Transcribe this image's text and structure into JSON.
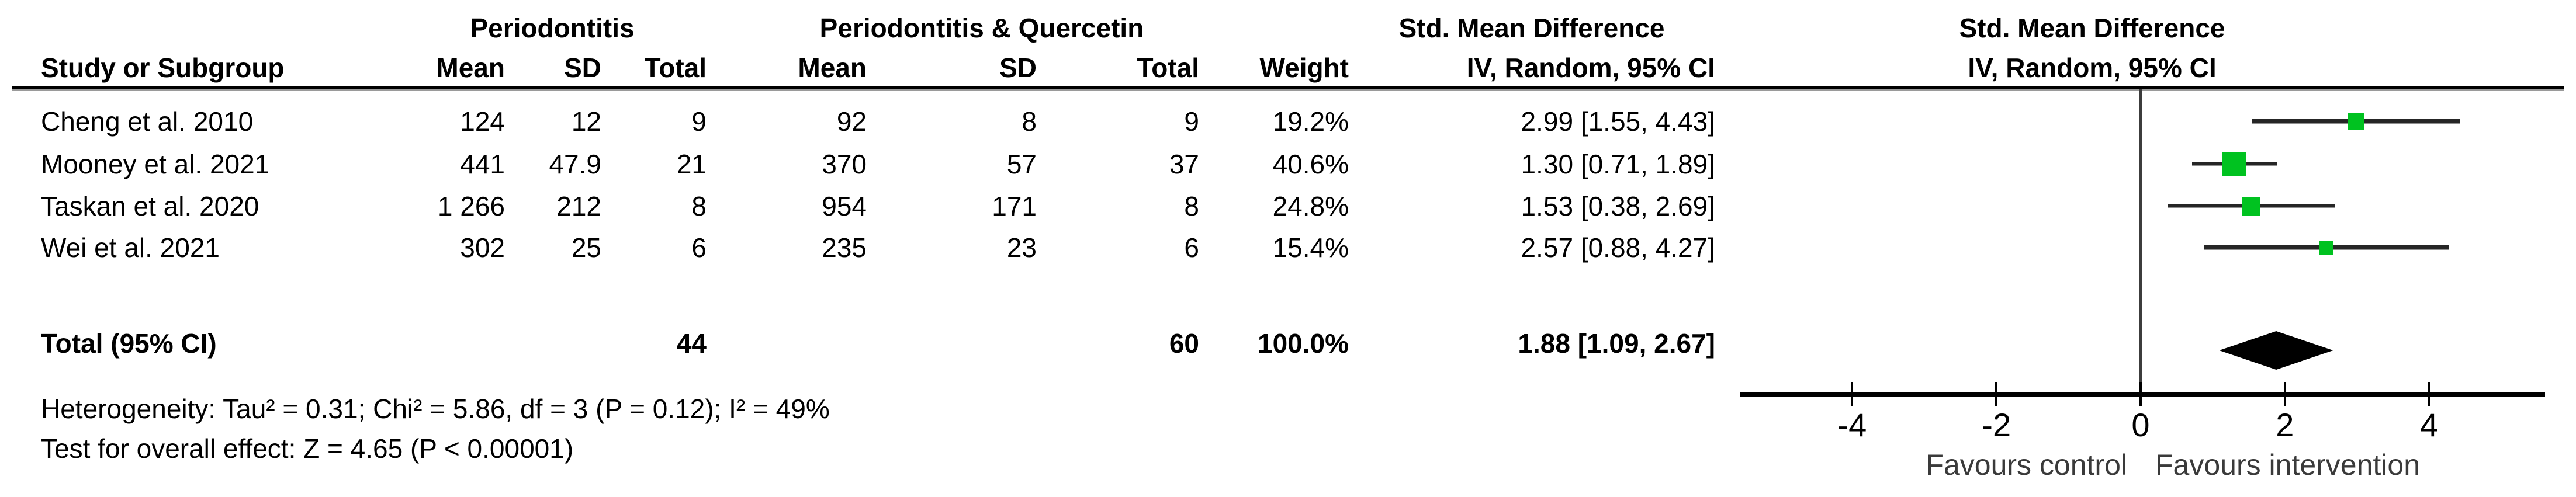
{
  "table": {
    "group1_header": "Periodontitis",
    "group2_header": "Periodontitis & Quercetin",
    "effect_col_header_line1": "Std. Mean Difference",
    "effect_col_header_line2": "IV, Random, 95% CI",
    "plot_header_line1": "Std. Mean Difference",
    "plot_header_line2": "IV, Random, 95% CI",
    "columns": {
      "study": "Study or Subgroup",
      "mean1": "Mean",
      "sd1": "SD",
      "total1": "Total",
      "mean2": "Mean",
      "sd2": "SD",
      "total2": "Total",
      "weight": "Weight",
      "ci": "IV, Random, 95% CI"
    },
    "rows": [
      {
        "study": "Cheng et al. 2010",
        "mean1": "124",
        "sd1": "12",
        "total1": "9",
        "mean2": "92",
        "sd2": "8",
        "total2": "9",
        "weight": "19.2%",
        "ci": "2.99 [1.55, 4.43]"
      },
      {
        "study": "Mooney et al. 2021",
        "mean1": "441",
        "sd1": "47.9",
        "total1": "21",
        "mean2": "370",
        "sd2": "57",
        "total2": "37",
        "weight": "40.6%",
        "ci": "1.30 [0.71, 1.89]"
      },
      {
        "study": "Taskan et al. 2020",
        "mean1": "1 266",
        "sd1": "212",
        "total1": "8",
        "mean2": "954",
        "sd2": "171",
        "total2": "8",
        "weight": "24.8%",
        "ci": "1.53 [0.38, 2.69]"
      },
      {
        "study": "Wei et al. 2021",
        "mean1": "302",
        "sd1": "25",
        "total1": "6",
        "mean2": "235",
        "sd2": "23",
        "total2": "6",
        "weight": "15.4%",
        "ci": "2.57 [0.88, 4.27]"
      }
    ],
    "total_row": {
      "label": "Total (95% CI)",
      "total1": "44",
      "total2": "60",
      "weight": "100.0%",
      "ci": "1.88 [1.09, 2.67]"
    }
  },
  "footer": {
    "heterogeneity": "Heterogeneity: Tau² = 0.31; Chi² = 5.86, df = 3 (P = 0.12); I² = 49%",
    "overall_effect": "Test for overall effect: Z = 4.65 (P < 0.00001)"
  },
  "colors": {
    "marker_green": "#00c220",
    "ci_line": "#262626",
    "diamond": "#000000"
  },
  "chart_data": {
    "type": "forest",
    "title": "Std. Mean Difference, IV, Random, 95% CI",
    "axis_ticks": [
      -4,
      -2,
      0,
      2,
      4
    ],
    "axis_tick_labels": [
      "-4",
      "-2",
      "0",
      "2",
      "4"
    ],
    "axis_range": [
      -5.6,
      5.6
    ],
    "favours_left": "Favours control",
    "favours_right": "Favours intervention",
    "studies": [
      {
        "name": "Cheng et al. 2010",
        "smd": 2.99,
        "ci_low": 1.55,
        "ci_high": 4.43,
        "weight_pct": 19.2
      },
      {
        "name": "Mooney et al. 2021",
        "smd": 1.3,
        "ci_low": 0.71,
        "ci_high": 1.89,
        "weight_pct": 40.6
      },
      {
        "name": "Taskan et al. 2020",
        "smd": 1.53,
        "ci_low": 0.38,
        "ci_high": 2.69,
        "weight_pct": 24.8
      },
      {
        "name": "Wei et al. 2021",
        "smd": 2.57,
        "ci_low": 0.88,
        "ci_high": 4.27,
        "weight_pct": 15.4
      }
    ],
    "total": {
      "smd": 1.88,
      "ci_low": 1.09,
      "ci_high": 2.67,
      "weight_pct": 100.0
    }
  }
}
